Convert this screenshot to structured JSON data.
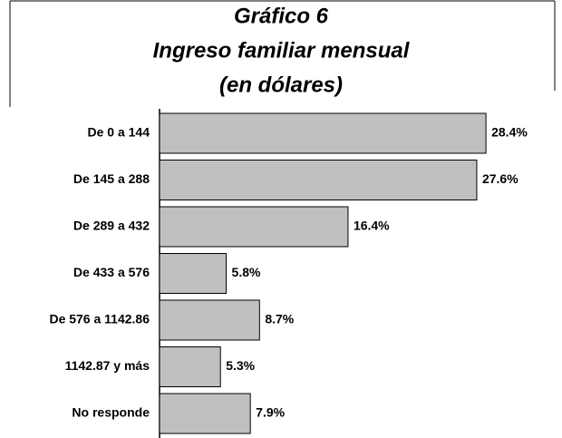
{
  "chart_data": {
    "type": "bar",
    "orientation": "horizontal",
    "title": [
      "Gráfico 6",
      "Ingreso familiar mensual",
      "(en dólares)"
    ],
    "categories": [
      "De 0 a 144",
      "De 145 a 288",
      "De 289 a 432",
      "De 433 a 576",
      "De 576 a 1142.86",
      "1142.87 y más",
      "No responde"
    ],
    "values": [
      28.4,
      27.6,
      16.4,
      5.8,
      8.7,
      5.3,
      7.9
    ],
    "value_labels": [
      "28.4%",
      "27.6%",
      "16.4%",
      "5.8%",
      "8.7%",
      "5.3%",
      "7.9%"
    ],
    "color": "#c0c0c0"
  }
}
